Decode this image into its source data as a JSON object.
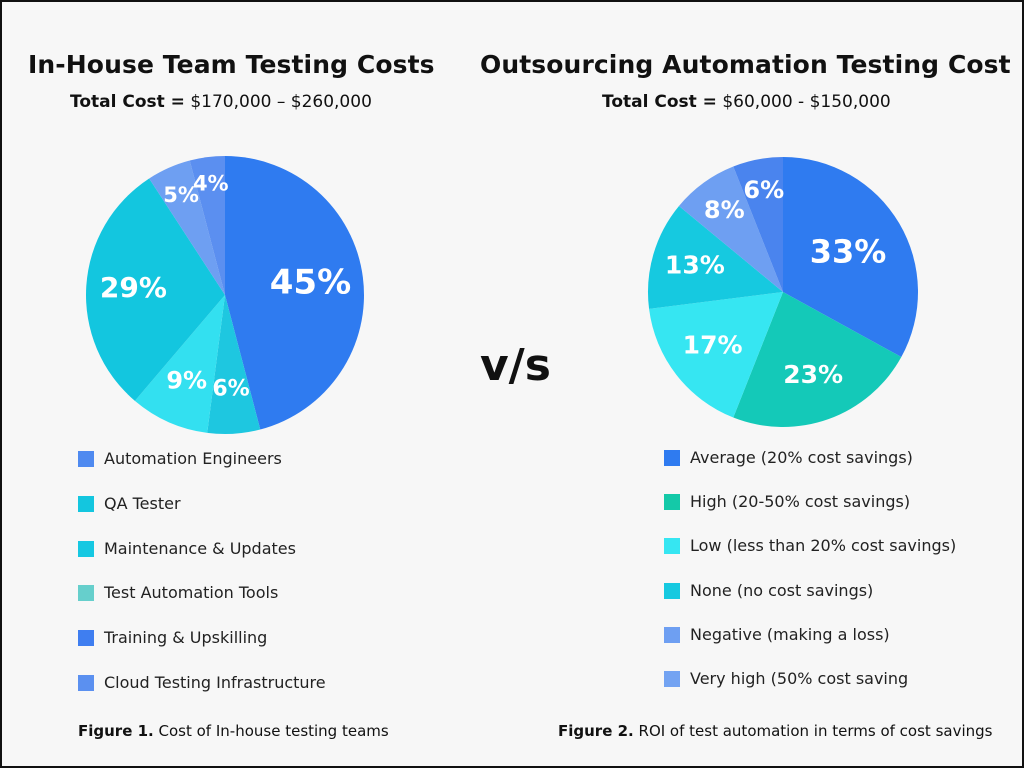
{
  "chart_data": [
    {
      "type": "pie",
      "title": "In-House Team Testing Costs",
      "subtitle_label": "Total Cost =",
      "subtitle_value": "$170,000 – $260,000",
      "slices": [
        {
          "label": "45%",
          "value": 45,
          "color": "#2f7bf0"
        },
        {
          "label": "6%",
          "value": 6,
          "color": "#1ec7e0"
        },
        {
          "label": "9%",
          "value": 9,
          "color": "#33e0f0"
        },
        {
          "label": "29%",
          "value": 29,
          "color": "#13c6df"
        },
        {
          "label": "5%",
          "value": 5,
          "color": "#6e9ff2"
        },
        {
          "label": "4%",
          "value": 4,
          "color": "#5b8ff0"
        }
      ],
      "legend": [
        {
          "label": "Automation Engineers",
          "color": "#4f8af0"
        },
        {
          "label": "QA Tester",
          "color": "#13c6df"
        },
        {
          "label": "Maintenance & Updates",
          "color": "#16c8e2"
        },
        {
          "label": "Test Automation Tools",
          "color": "#66cfcc"
        },
        {
          "label": "Training & Upskilling",
          "color": "#3f7ef0"
        },
        {
          "label": "Cloud Testing Infrastructure",
          "color": "#5b90f0"
        }
      ],
      "caption_bold": "Figure 1.",
      "caption_text": "Cost of In-house testing teams"
    },
    {
      "type": "pie",
      "title": "Outsourcing Automation Testing Cost",
      "subtitle_label": "Total Cost =",
      "subtitle_value": "$60,000 - $150,000",
      "slices": [
        {
          "label": "33%",
          "value": 33,
          "color": "#2f7bf0"
        },
        {
          "label": "23%",
          "value": 23,
          "color": "#14c9b8"
        },
        {
          "label": "17%",
          "value": 17,
          "color": "#36e6f2"
        },
        {
          "label": "13%",
          "value": 13,
          "color": "#16c9e0"
        },
        {
          "label": "8%",
          "value": 8,
          "color": "#6e9ff2"
        },
        {
          "label": "6%",
          "value": 6,
          "color": "#4a84ee"
        }
      ],
      "legend": [
        {
          "label": "Average (20% cost savings)",
          "color": "#2f7bf0"
        },
        {
          "label": "High (20-50% cost savings)",
          "color": "#14c9a8"
        },
        {
          "label": "Low (less than 20% cost savings)",
          "color": "#36e6f2"
        },
        {
          "label": "None (no cost savings)",
          "color": "#16c9e0"
        },
        {
          "label": "Negative (making a loss)",
          "color": "#6e9ff2"
        },
        {
          "label": "Very high (50% cost saving",
          "color": "#73a3f2"
        }
      ],
      "caption_bold": "Figure 2.",
      "caption_text": "ROI of test automation in terms of cost savings"
    }
  ],
  "vs_label": "v/s"
}
